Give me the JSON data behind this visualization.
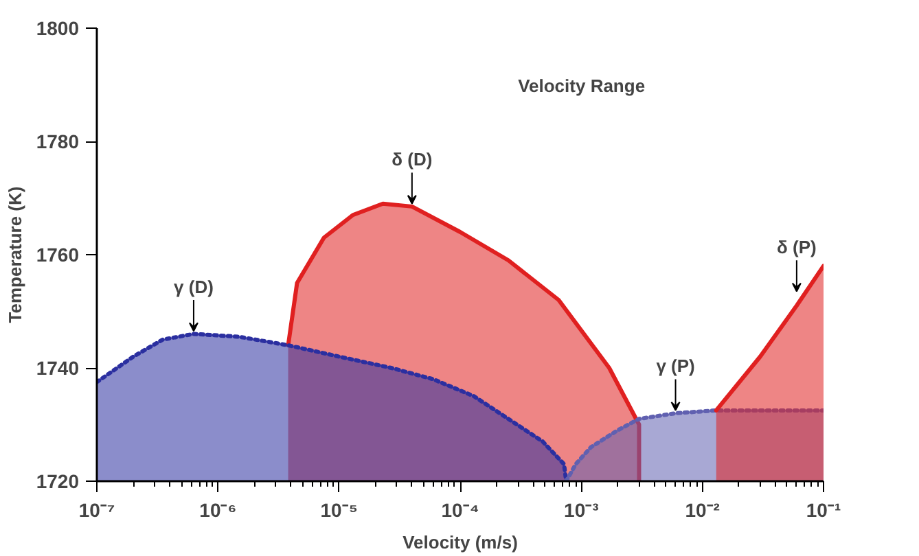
{
  "chart_data": {
    "type": "area",
    "log": "x",
    "xlabel": "Velocity (m/s)",
    "ylabel": "Temperature (K)",
    "xlim": [
      1e-07,
      0.1
    ],
    "ylim": [
      1720,
      1800
    ],
    "xticks": [
      {
        "value": 1e-07,
        "label": "10⁻⁷"
      },
      {
        "value": 1e-06,
        "label": "10⁻⁶"
      },
      {
        "value": 1e-05,
        "label": "10⁻⁵"
      },
      {
        "value": 0.0001,
        "label": "10⁻⁴"
      },
      {
        "value": 0.001,
        "label": "10⁻³"
      },
      {
        "value": 0.01,
        "label": "10⁻²"
      },
      {
        "value": 0.1,
        "label": "10⁻¹"
      }
    ],
    "yticks": [
      1720,
      1740,
      1760,
      1780,
      1800
    ],
    "grid": false,
    "series": [
      {
        "color": "#e02020",
        "line_style": "solid",
        "x": [
          3.8e-06,
          4.5e-06,
          7.5e-06,
          1.3e-05,
          2.3e-05,
          4e-05,
          0.0001,
          0.00025,
          0.00065,
          0.0017,
          0.003,
          0.003
        ],
        "values": [
          1744,
          1755,
          1763,
          1767,
          1769,
          1768.5,
          1764,
          1759,
          1752,
          1740,
          1730,
          1720
        ]
      },
      {
        "color": "#2b2fa0",
        "line_style": "dotted",
        "x": [
          1e-07,
          2e-07,
          3.5e-07,
          6.3e-07,
          1.5e-06,
          3.8e-06,
          1e-05,
          2.7e-05,
          6e-05,
          0.00013,
          0.00025,
          0.00048,
          0.00072,
          0.00075
        ],
        "values": [
          1737.5,
          1742,
          1745,
          1746,
          1745.5,
          1744,
          1742,
          1740,
          1738,
          1735,
          1731,
          1727,
          1723,
          1720
        ]
      },
      {
        "color": "#6060b0",
        "line_style": "dotted",
        "x": [
          0.00075,
          0.0009,
          0.0012,
          0.002,
          0.003,
          0.006,
          0.013,
          0.03,
          0.1
        ],
        "values": [
          1720,
          1723,
          1726,
          1729,
          1731,
          1732,
          1732.5,
          1732.5,
          1732.5
        ]
      },
      {
        "color": "#e02020",
        "line_style": "solid",
        "x": [
          0.013,
          0.03,
          0.06,
          0.1
        ],
        "values": [
          1732.5,
          1742,
          1751,
          1758
        ]
      }
    ],
    "annotations": [
      "Velocity Range",
      {
        "text": "γ (D)",
        "x": 6.3e-07,
        "y": 1746
      },
      {
        "text": "δ (D)",
        "x": 4e-05,
        "y": 1768.5
      },
      {
        "text": "γ (P)",
        "x": 0.006,
        "y": 1732
      },
      {
        "text": "δ (P)",
        "x": 0.06,
        "y": 1753
      }
    ]
  }
}
